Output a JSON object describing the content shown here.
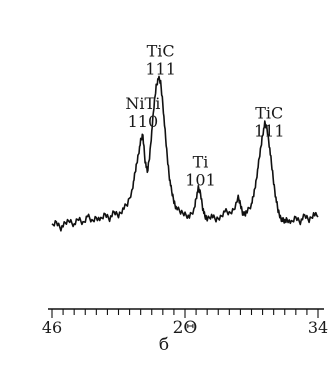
{
  "chart_data": {
    "type": "line",
    "title": "",
    "xlabel": "2Θ",
    "ylabel": "",
    "panel_label": "б",
    "xlim": [
      46,
      34
    ],
    "x_reversed": true,
    "x_tick_labels": [
      {
        "value": 46,
        "text": "46"
      },
      {
        "value": 40,
        "text": "2Θ"
      },
      {
        "value": 34,
        "text": "34"
      }
    ],
    "minor_tick_step": 0.5,
    "ylim": [
      0,
      100
    ],
    "y_axis_shown": false,
    "grid": false,
    "annotations": [
      {
        "phase": "NiTi",
        "hkl": "110",
        "x": 41.9
      },
      {
        "phase": "TiC",
        "hkl": "111",
        "x": 41.1
      },
      {
        "phase": "Ti",
        "hkl": "101",
        "x": 39.3
      },
      {
        "phase": "TiC",
        "hkl": "111",
        "x": 36.2
      }
    ],
    "series": [
      {
        "x": [
          46.0,
          45.8,
          45.6,
          45.4,
          45.2,
          45.0,
          44.8,
          44.6,
          44.4,
          44.2,
          44.0,
          43.8,
          43.6,
          43.4,
          43.2,
          43.0,
          42.8,
          42.6,
          42.4,
          42.3,
          42.2,
          42.1,
          42.0,
          41.9,
          41.8,
          41.7,
          41.6,
          41.5,
          41.4,
          41.3,
          41.2,
          41.1,
          41.0,
          40.9,
          40.8,
          40.7,
          40.6,
          40.5,
          40.4,
          40.2,
          40.0,
          39.8,
          39.6,
          39.5,
          39.4,
          39.3,
          39.2,
          39.1,
          39.0,
          38.8,
          38.6,
          38.4,
          38.2,
          38.0,
          37.8,
          37.6,
          37.5,
          37.4,
          37.3,
          37.2,
          37.0,
          36.9,
          36.8,
          36.7,
          36.6,
          36.5,
          36.4,
          36.3,
          36.2,
          36.1,
          36.0,
          35.9,
          35.8,
          35.7,
          35.6,
          35.5,
          35.4,
          35.2,
          35.0,
          34.8,
          34.6,
          34.4,
          34.2,
          34.0
        ],
        "y": [
          6,
          9,
          5,
          8,
          10,
          7,
          11,
          8,
          13,
          9,
          12,
          10,
          14,
          11,
          15,
          13,
          17,
          20,
          28,
          36,
          44,
          52,
          60,
          64,
          48,
          40,
          50,
          66,
          82,
          95,
          100,
          97,
          84,
          66,
          50,
          37,
          28,
          22,
          18,
          15,
          14,
          12,
          16,
          24,
          30,
          27,
          18,
          12,
          11,
          13,
          10,
          12,
          16,
          14,
          17,
          24,
          20,
          15,
          13,
          16,
          20,
          26,
          34,
          44,
          54,
          64,
          71,
          68,
          58,
          46,
          34,
          24,
          16,
          12,
          10,
          9,
          11,
          8,
          12,
          9,
          13,
          10,
          14,
          12
        ]
      }
    ]
  }
}
